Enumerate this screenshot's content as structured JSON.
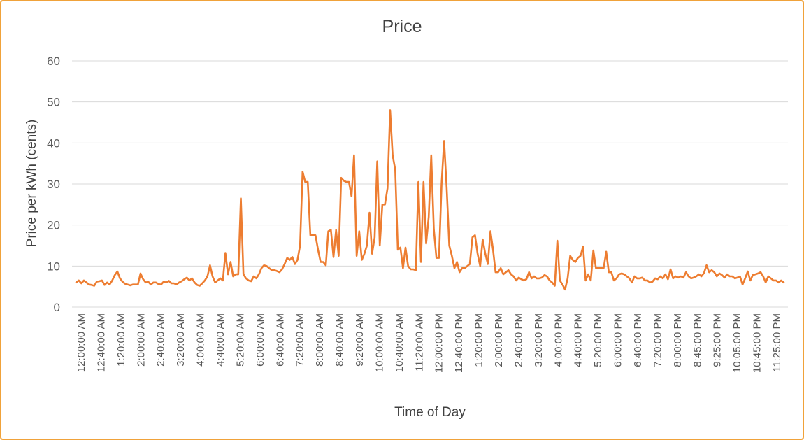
{
  "chart_data": {
    "type": "line",
    "title": "Price",
    "xlabel": "Time of Day",
    "ylabel": "Price per kWh (cents)",
    "ylim": [
      0,
      60
    ],
    "yticks": [
      0,
      10,
      20,
      30,
      40,
      50,
      60
    ],
    "grid": true,
    "legend": "none",
    "color": "#ED7D31",
    "x_tick_labels": [
      "12:00:00 AM",
      "12:40:00 AM",
      "1:20:00 AM",
      "2:00:00 AM",
      "2:40:00 AM",
      "3:20:00 AM",
      "4:00:00 AM",
      "4:40:00 AM",
      "5:20:00 AM",
      "6:00:00 AM",
      "6:40:00 AM",
      "7:20:00 AM",
      "8:00:00 AM",
      "8:40:00 AM",
      "9:20:00 AM",
      "10:00:00 AM",
      "10:40:00 AM",
      "11:20:00 AM",
      "12:00:00 PM",
      "12:40:00 PM",
      "1:20:00 PM",
      "2:00:00 PM",
      "2:40:00 PM",
      "3:20:00 PM",
      "4:00:00 PM",
      "4:40:00 PM",
      "5:20:00 PM",
      "6:00:00 PM",
      "6:40:00 PM",
      "7:20:00 PM",
      "8:00:00 PM",
      "8:45:00 PM",
      "9:25:00 PM",
      "10:05:00 PM",
      "10:45:00 PM",
      "11:25:00 PM"
    ],
    "values": [
      6.0,
      6.5,
      5.8,
      6.5,
      6.0,
      5.5,
      5.4,
      5.2,
      6.2,
      6.3,
      6.5,
      5.4,
      6.0,
      5.5,
      6.5,
      7.8,
      8.7,
      7.0,
      6.2,
      5.7,
      5.5,
      5.3,
      5.5,
      5.5,
      5.5,
      8.2,
      6.8,
      6.0,
      6.2,
      5.5,
      6.0,
      6.0,
      5.6,
      5.5,
      6.2,
      6.0,
      6.4,
      5.8,
      5.8,
      5.5,
      6.0,
      6.3,
      6.8,
      7.2,
      6.5,
      7.0,
      6.0,
      5.4,
      5.2,
      5.8,
      6.5,
      7.5,
      10.2,
      7.5,
      6.0,
      6.5,
      7.0,
      6.5,
      13.2,
      8.0,
      11.0,
      7.5,
      8.0,
      8.0,
      26.5,
      8.0,
      7.0,
      6.5,
      6.3,
      7.5,
      7.0,
      8.0,
      9.5,
      10.2,
      10.0,
      9.5,
      9.0,
      9.0,
      8.8,
      8.5,
      9.2,
      10.5,
      12.0,
      11.5,
      12.2,
      10.5,
      11.5,
      15.0,
      33.0,
      30.5,
      30.5,
      17.5,
      17.5,
      17.5,
      14.0,
      11.0,
      11.0,
      10.2,
      18.5,
      18.8,
      12.2,
      18.8,
      12.5,
      31.5,
      30.8,
      30.5,
      30.5,
      27.0,
      37.0,
      12.5,
      18.5,
      11.5,
      13.0,
      15.0,
      23.0,
      13.0,
      17.0,
      35.5,
      15.0,
      25.0,
      25.0,
      29.0,
      48.0,
      37.0,
      33.5,
      14.0,
      14.5,
      9.5,
      14.5,
      10.0,
      9.2,
      9.2,
      9.0,
      30.5,
      11.0,
      30.5,
      15.5,
      22.0,
      37.0,
      19.0,
      12.0,
      12.0,
      30.0,
      40.5,
      29.0,
      15.0,
      12.5,
      9.5,
      11.0,
      8.5,
      9.5,
      9.5,
      10.0,
      10.5,
      17.0,
      17.5,
      13.0,
      10.0,
      16.5,
      13.0,
      10.5,
      18.5,
      14.0,
      8.5,
      8.5,
      9.5,
      8.0,
      8.5,
      9.0,
      8.0,
      7.5,
      6.5,
      7.2,
      6.8,
      6.5,
      6.8,
      8.5,
      7.0,
      7.5,
      7.0,
      7.0,
      7.2,
      7.8,
      7.5,
      6.5,
      6.0,
      5.2,
      16.2,
      6.5,
      5.5,
      4.3,
      7.0,
      12.5,
      11.5,
      11.0,
      12.0,
      12.5,
      14.8,
      6.5,
      8.0,
      6.5,
      13.8,
      9.5,
      9.5,
      9.5,
      9.5,
      13.5,
      8.5,
      8.5,
      6.5,
      7.0,
      8.0,
      8.2,
      8.0,
      7.5,
      7.0,
      6.0,
      7.5,
      7.0,
      7.0,
      7.2,
      6.5,
      6.5,
      6.0,
      6.2,
      7.0,
      6.8,
      7.5,
      7.0,
      8.0,
      6.8,
      9.2,
      7.0,
      7.5,
      7.2,
      7.5,
      7.2,
      8.5,
      7.5,
      7.0,
      7.2,
      7.5,
      8.0,
      7.5,
      8.3,
      10.2,
      8.5,
      9.0,
      8.5,
      7.5,
      8.2,
      7.8,
      7.2,
      8.0,
      7.5,
      7.5,
      7.0,
      7.2,
      7.5,
      5.5,
      7.0,
      8.7,
      6.5,
      7.8,
      8.0,
      8.2,
      8.5,
      7.5,
      6.0,
      7.5,
      7.0,
      6.5,
      6.5,
      6.0,
      6.5,
      6.0
    ]
  }
}
